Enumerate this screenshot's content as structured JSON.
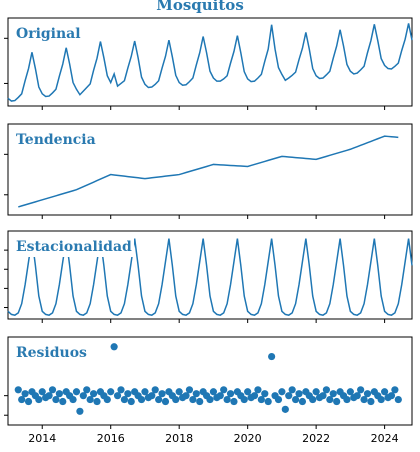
{
  "chart_data": {
    "type": "line",
    "title": "Mosquitos",
    "x": [
      2013,
      2013.1,
      2013.2,
      2013.3,
      2013.4,
      2013.5,
      2013.6,
      2013.7,
      2013.8,
      2013.9,
      2014,
      2014.1,
      2014.2,
      2014.3,
      2014.4,
      2014.5,
      2014.6,
      2014.7,
      2014.8,
      2014.9,
      2015,
      2015.1,
      2015.2,
      2015.3,
      2015.4,
      2015.5,
      2015.6,
      2015.7,
      2015.8,
      2015.9,
      2016,
      2016.1,
      2016.2,
      2016.3,
      2016.4,
      2016.5,
      2016.6,
      2016.7,
      2016.8,
      2016.9,
      2017,
      2017.1,
      2017.2,
      2017.3,
      2017.4,
      2017.5,
      2017.6,
      2017.7,
      2017.8,
      2017.9,
      2018,
      2018.1,
      2018.2,
      2018.3,
      2018.4,
      2018.5,
      2018.6,
      2018.7,
      2018.8,
      2018.9,
      2019,
      2019.1,
      2019.2,
      2019.3,
      2019.4,
      2019.5,
      2019.6,
      2019.7,
      2019.8,
      2019.9,
      2020,
      2020.1,
      2020.2,
      2020.3,
      2020.4,
      2020.5,
      2020.6,
      2020.7,
      2020.8,
      2020.9,
      2021,
      2021.1,
      2021.2,
      2021.3,
      2021.4,
      2021.5,
      2021.6,
      2021.7,
      2021.8,
      2021.9,
      2022,
      2022.1,
      2022.2,
      2022.3,
      2022.4,
      2022.5,
      2022.6,
      2022.7,
      2022.8,
      2022.9,
      2023,
      2023.1,
      2023.2,
      2023.3,
      2023.4,
      2023.5,
      2023.6,
      2023.7,
      2023.8,
      2023.9,
      2024,
      2024.1,
      2024.2,
      2024.3,
      2024.4,
      2024.5,
      2024.6,
      2024.7,
      2024.8
    ],
    "xlim": [
      2013,
      2024.8
    ],
    "xticks": [
      2014,
      2016,
      2018,
      2020,
      2022,
      2024
    ],
    "series": [
      {
        "name": "Original",
        "color": "#1f77b4",
        "ylim": [
          0,
          19.5
        ],
        "yticks": [
          5,
          15
        ],
        "values": [
          1.7,
          1.1,
          1.2,
          1.9,
          2.7,
          5.6,
          8.3,
          11.9,
          8.3,
          4.2,
          2.7,
          2.1,
          2.2,
          2.9,
          3.7,
          6.6,
          9.3,
          12.9,
          9.3,
          5.2,
          3.7,
          2.5,
          3.3,
          4.1,
          4.9,
          7.9,
          10.6,
          14.3,
          10.7,
          6.7,
          5.2,
          7.1,
          4.4,
          5.0,
          5.6,
          8.4,
          11.0,
          14.4,
          10.7,
          6.4,
          4.8,
          4.1,
          4.2,
          4.8,
          5.6,
          8.4,
          11.0,
          14.6,
          10.9,
          6.8,
          5.2,
          4.6,
          4.7,
          5.4,
          6.2,
          9.1,
          11.8,
          15.4,
          11.8,
          7.7,
          6.2,
          5.5,
          5.5,
          6.0,
          6.7,
          9.5,
          12.1,
          15.6,
          11.8,
          7.6,
          6.0,
          5.4,
          5.5,
          6.2,
          7.0,
          9.9,
          12.6,
          18.0,
          12.6,
          8.5,
          7.0,
          5.7,
          6.2,
          6.8,
          7.5,
          10.3,
          12.8,
          16.3,
          12.6,
          8.3,
          6.7,
          6.1,
          6.2,
          6.9,
          7.7,
          10.6,
          13.3,
          16.9,
          13.3,
          9.2,
          7.7,
          7.1,
          7.3,
          8.0,
          8.8,
          11.8,
          14.5,
          18.1,
          14.5,
          10.5,
          9.0,
          8.3,
          8.2,
          8.8,
          9.5,
          12.3,
          14.8,
          18.3,
          14.6
        ]
      },
      {
        "name": "Tendencia",
        "color": "#1f77b4",
        "ylim": [
          4,
          13
        ],
        "yticks": [
          6,
          10
        ],
        "values": [
          null,
          null,
          null,
          4.8,
          4.9,
          5.0,
          5.1,
          5.2,
          5.3,
          5.4,
          5.5,
          5.6,
          5.7,
          5.8,
          5.9,
          6.0,
          6.1,
          6.2,
          6.3,
          6.4,
          6.5,
          6.65,
          6.8,
          6.95,
          7.1,
          7.25,
          7.4,
          7.55,
          7.7,
          7.85,
          8.0,
          7.96,
          7.92,
          7.88,
          7.84,
          7.8,
          7.76,
          7.72,
          7.68,
          7.64,
          7.6,
          7.64,
          7.68,
          7.72,
          7.76,
          7.8,
          7.84,
          7.88,
          7.92,
          7.96,
          8.0,
          8.1,
          8.2,
          8.3,
          8.4,
          8.5,
          8.6,
          8.7,
          8.8,
          8.9,
          9.0,
          8.98,
          8.96,
          8.94,
          8.92,
          8.9,
          8.88,
          8.86,
          8.84,
          8.82,
          8.8,
          8.9,
          9.0,
          9.1,
          9.2,
          9.3,
          9.4,
          9.5,
          9.6,
          9.7,
          9.8,
          9.77,
          9.74,
          9.71,
          9.68,
          9.65,
          9.62,
          9.59,
          9.56,
          9.53,
          9.5,
          9.6,
          9.7,
          9.8,
          9.9,
          10.0,
          10.1,
          10.2,
          10.3,
          10.4,
          10.5,
          10.63,
          10.76,
          10.89,
          11.02,
          11.15,
          11.28,
          11.41,
          11.54,
          11.67,
          11.8,
          11.77,
          11.74,
          11.71,
          11.68,
          null,
          null,
          null,
          null
        ]
      },
      {
        "name": "Estacionalidad",
        "color": "#1f77b4",
        "ylim": [
          -4,
          7.5
        ],
        "yticks": [
          -2.5,
          0,
          2.5,
          5
        ],
        "values": [
          -3,
          -3.4,
          -3.5,
          -3.2,
          -2,
          0.5,
          3.5,
          6.5,
          3,
          -1,
          -3,
          -3.4,
          -3.5,
          -3.2,
          -2,
          0.5,
          3.5,
          6.5,
          3,
          -1,
          -3,
          -3.4,
          -3.5,
          -3.2,
          -2,
          0.5,
          3.5,
          6.5,
          3,
          -1,
          -3,
          -3.4,
          -3.5,
          -3.2,
          -2,
          0.5,
          3.5,
          6.5,
          3,
          -1,
          -3,
          -3.4,
          -3.5,
          -3.2,
          -2,
          0.5,
          3.5,
          6.5,
          3,
          -1,
          -3,
          -3.4,
          -3.5,
          -3.2,
          -2,
          0.5,
          3.5,
          6.5,
          3,
          -1,
          -3,
          -3.4,
          -3.5,
          -3.2,
          -2,
          0.5,
          3.5,
          6.5,
          3,
          -1,
          -3,
          -3.4,
          -3.5,
          -3.2,
          -2,
          0.5,
          3.5,
          6.5,
          3,
          -1,
          -3,
          -3.4,
          -3.5,
          -3.2,
          -2,
          0.5,
          3.5,
          6.5,
          3,
          -1,
          -3,
          -3.4,
          -3.5,
          -3.2,
          -2,
          0.5,
          3.5,
          6.5,
          3,
          -1,
          -3,
          -3.4,
          -3.5,
          -3.2,
          -2,
          0.5,
          3.5,
          6.5,
          3,
          -1,
          -3,
          -3.4,
          -3.5,
          -3.2,
          -2,
          0.5,
          3.5,
          6.5,
          3
        ]
      },
      {
        "name": "Residuos",
        "type": "scatter",
        "color": "#1f77b4",
        "ylim": [
          -1.5,
          3
        ],
        "yticks": [
          -1,
          0
        ],
        "values": [
          null,
          null,
          null,
          0.3,
          -0.2,
          0.1,
          -0.3,
          0.2,
          0,
          -0.2,
          0.2,
          -0.1,
          0,
          0.3,
          -0.2,
          0.1,
          -0.3,
          0.2,
          0,
          -0.2,
          0.2,
          -0.8,
          0,
          0.3,
          -0.2,
          0.1,
          -0.3,
          0.2,
          0,
          -0.2,
          0.2,
          2.5,
          0,
          0.3,
          -0.2,
          0.1,
          -0.3,
          0.2,
          0,
          -0.2,
          0.2,
          -0.1,
          0,
          0.3,
          -0.2,
          0.1,
          -0.3,
          0.2,
          0,
          -0.2,
          0.2,
          -0.1,
          0,
          0.3,
          -0.2,
          0.1,
          -0.3,
          0.2,
          0,
          -0.2,
          0.2,
          -0.1,
          0,
          0.3,
          -0.2,
          0.1,
          -0.3,
          0.2,
          0,
          -0.2,
          0.2,
          -0.1,
          0,
          0.3,
          -0.2,
          0.1,
          -0.3,
          2.0,
          0,
          -0.2,
          0.2,
          -0.7,
          0,
          0.3,
          -0.2,
          0.1,
          -0.3,
          0.2,
          0,
          -0.2,
          0.2,
          -0.1,
          0,
          0.3,
          -0.2,
          0.1,
          -0.3,
          0.2,
          0,
          -0.2,
          0.2,
          -0.1,
          0,
          0.3,
          -0.2,
          0.1,
          -0.3,
          0.2,
          0,
          -0.2,
          0.2,
          -0.1,
          0,
          0.3,
          -0.2,
          null,
          null,
          null,
          null
        ]
      }
    ]
  }
}
